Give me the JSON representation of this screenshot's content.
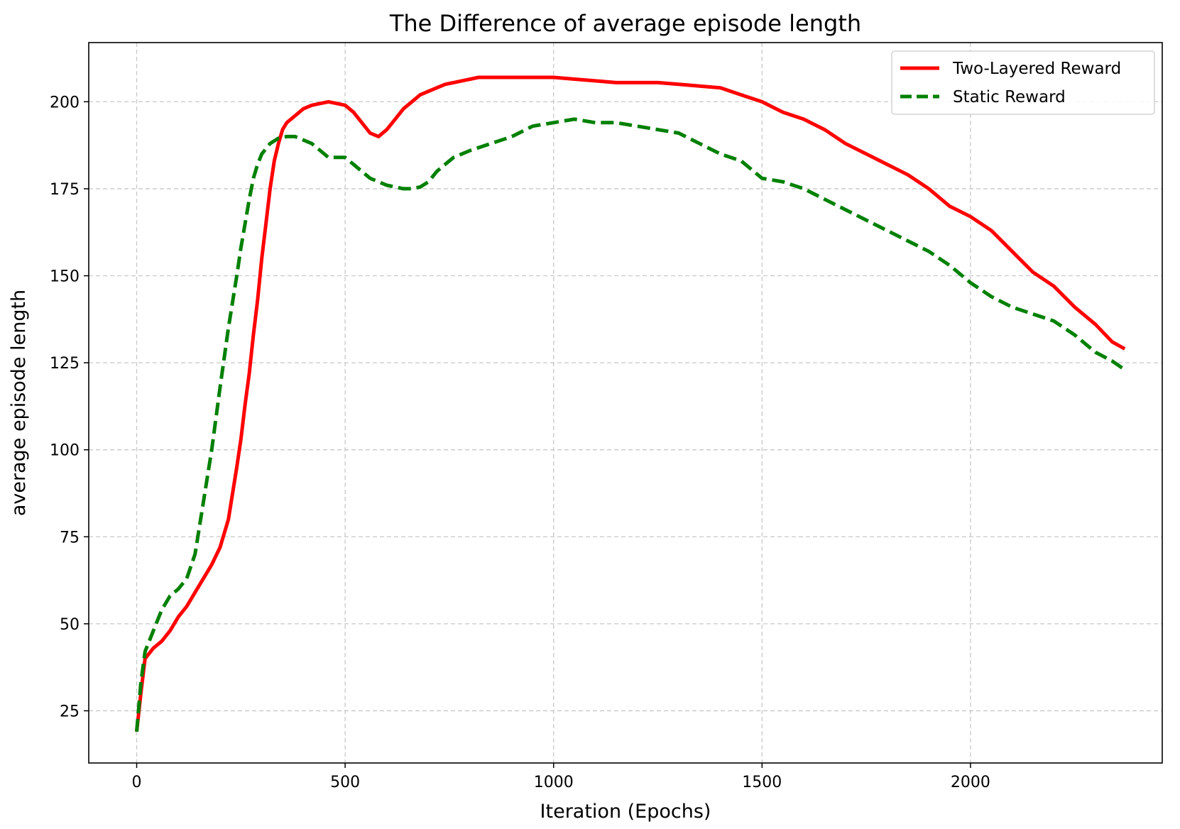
{
  "chart_data": {
    "type": "line",
    "title": "The Difference of average episode length",
    "xlabel": "Iteration (Epochs)",
    "ylabel": "average episode length",
    "xlim": [
      -115,
      2460
    ],
    "ylim": [
      10,
      217
    ],
    "xticks": [
      0,
      500,
      1000,
      1500,
      2000
    ],
    "yticks": [
      25,
      50,
      75,
      100,
      125,
      150,
      175,
      200
    ],
    "grid": true,
    "legend_position": "upper right",
    "series": [
      {
        "name": "Two-Layered Reward",
        "color": "#ff0000",
        "style": "solid",
        "x": [
          0,
          10,
          20,
          40,
          60,
          80,
          100,
          120,
          140,
          160,
          180,
          200,
          220,
          240,
          250,
          260,
          270,
          280,
          290,
          300,
          310,
          320,
          330,
          340,
          350,
          360,
          380,
          400,
          420,
          440,
          460,
          480,
          500,
          520,
          540,
          560,
          580,
          600,
          620,
          640,
          660,
          680,
          700,
          720,
          740,
          760,
          780,
          800,
          820,
          840,
          860,
          900,
          950,
          1000,
          1050,
          1100,
          1150,
          1200,
          1250,
          1300,
          1350,
          1400,
          1450,
          1500,
          1550,
          1600,
          1650,
          1700,
          1750,
          1800,
          1850,
          1900,
          1950,
          2000,
          2050,
          2100,
          2150,
          2200,
          2250,
          2300,
          2340,
          2370
        ],
        "values": [
          19,
          30,
          40,
          43,
          45,
          48,
          52,
          55,
          59,
          63,
          67,
          72,
          80,
          95,
          103,
          113,
          122,
          133,
          143,
          155,
          165,
          175,
          183,
          188,
          192,
          194,
          196,
          198,
          199,
          199.5,
          200,
          199.5,
          199,
          197,
          194,
          191,
          190,
          192,
          195,
          198,
          200,
          202,
          203,
          204,
          205,
          205.5,
          206,
          206.5,
          207,
          207,
          207,
          207,
          207,
          207,
          206.5,
          206,
          205.5,
          205.5,
          205.5,
          205,
          204.5,
          204,
          202,
          200,
          197,
          195,
          192,
          188,
          185,
          182,
          179,
          175,
          170,
          167,
          163,
          157,
          151,
          147,
          141,
          136,
          131,
          129
        ]
      },
      {
        "name": "Static Reward",
        "color": "#008000",
        "style": "dashed",
        "x": [
          0,
          10,
          20,
          40,
          60,
          80,
          100,
          120,
          140,
          160,
          180,
          200,
          220,
          240,
          250,
          260,
          270,
          280,
          290,
          300,
          320,
          340,
          360,
          380,
          400,
          420,
          440,
          460,
          480,
          500,
          520,
          540,
          560,
          580,
          600,
          620,
          640,
          660,
          680,
          700,
          720,
          740,
          760,
          780,
          800,
          850,
          900,
          950,
          1000,
          1050,
          1100,
          1150,
          1200,
          1250,
          1300,
          1350,
          1400,
          1450,
          1500,
          1550,
          1600,
          1650,
          1700,
          1750,
          1800,
          1850,
          1900,
          1950,
          2000,
          2050,
          2100,
          2150,
          2200,
          2250,
          2300,
          2340,
          2370
        ],
        "values": [
          19,
          33,
          42,
          48,
          54,
          58,
          60,
          63,
          70,
          85,
          100,
          118,
          135,
          150,
          158,
          165,
          172,
          178,
          182,
          185,
          188,
          189.5,
          190,
          190,
          189,
          188,
          186,
          184,
          184,
          184,
          182,
          180,
          178,
          177,
          176,
          175.5,
          175,
          175,
          175.5,
          177,
          180,
          182,
          184,
          185,
          186,
          188,
          190,
          193,
          194,
          195,
          194,
          194,
          193,
          192,
          191,
          188,
          185,
          183,
          178,
          177,
          175,
          172,
          169,
          166,
          163,
          160,
          157,
          153,
          148,
          144,
          141,
          139,
          137,
          133,
          128,
          125.5,
          123
        ]
      }
    ]
  }
}
